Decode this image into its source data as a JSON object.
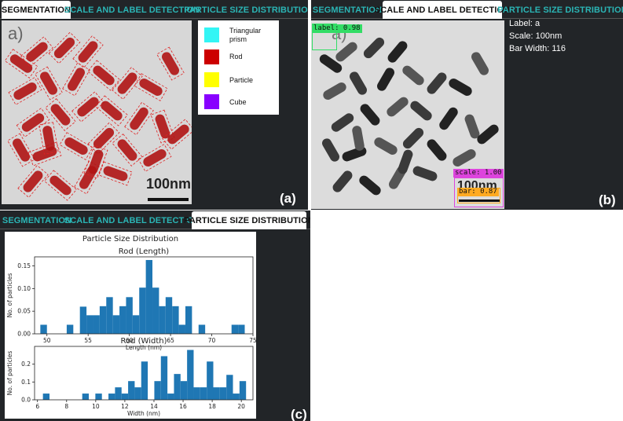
{
  "panel_a": {
    "tabs": [
      {
        "label": "SEGMENTATION",
        "active": true
      },
      {
        "label": "SCALE AND LABEL DETECTION",
        "active": false
      },
      {
        "label": "PARTICLE SIZE DISTRIBUTION",
        "active": false
      }
    ],
    "image_label": "a)",
    "scale_text": "100nm",
    "legend": [
      {
        "name": "Triangular prism",
        "color": "#33f5f5",
        "icon": "cyan-swatch"
      },
      {
        "name": "Rod",
        "color": "#cc0000",
        "icon": "red-swatch"
      },
      {
        "name": "Particle",
        "color": "#ffff00",
        "icon": "yellow-swatch"
      },
      {
        "name": "Cube",
        "color": "#8800ff",
        "icon": "violet-swatch"
      }
    ],
    "panel_label": "(a)"
  },
  "panel_b": {
    "tabs": [
      {
        "label": "SEGMENTATION",
        "active": false
      },
      {
        "label": "SCALE AND LABEL DETECTION",
        "active": true
      },
      {
        "label": "PARTICLE SIZE DISTRIBUTION",
        "active": false
      }
    ],
    "image_label": "a)",
    "scale_text": "100nm",
    "detections": {
      "label": "label: 0.98",
      "scale": "scale: 1.00",
      "bar": "bar: 0.87"
    },
    "info": {
      "label": "Label: a",
      "scale": "Scale: 100nm",
      "bar_width": "Bar Width: 116"
    },
    "colors": {
      "label_box": "#33dd66",
      "scale_box": "#dd44dd",
      "bar_box": "#ffaa22"
    },
    "panel_label": "(b)"
  },
  "panel_c": {
    "tabs": [
      {
        "label": "SEGMENTATION",
        "active": false
      },
      {
        "label": "SCALE AND LABEL DETECTION",
        "active": false
      },
      {
        "label": "PARTICLE SIZE DISTRIBUTION",
        "active": true
      }
    ],
    "panel_label": "(c)"
  },
  "chart_data": [
    {
      "type": "bar",
      "suptitle": "Particle Size Distribution",
      "title": "Rod (Length)",
      "xlabel": "Length (nm)",
      "ylabel": "No. of particles",
      "xlim": [
        48.5,
        75
      ],
      "ylim": [
        0,
        0.17
      ],
      "xticks": [
        50,
        55,
        60,
        65,
        70,
        75
      ],
      "yticks": [
        0,
        0.05,
        0.1,
        0.15
      ],
      "ytick_labels": [
        "0.00",
        "0.05",
        "0.10",
        "0.15"
      ],
      "bin_width": 0.8,
      "bins": [
        {
          "x": 49.6,
          "y": 0.02
        },
        {
          "x": 52.8,
          "y": 0.02
        },
        {
          "x": 54.4,
          "y": 0.06
        },
        {
          "x": 55.2,
          "y": 0.041
        },
        {
          "x": 56.0,
          "y": 0.041
        },
        {
          "x": 56.8,
          "y": 0.061
        },
        {
          "x": 57.6,
          "y": 0.081
        },
        {
          "x": 58.4,
          "y": 0.041
        },
        {
          "x": 59.2,
          "y": 0.061
        },
        {
          "x": 60.0,
          "y": 0.081
        },
        {
          "x": 60.8,
          "y": 0.041
        },
        {
          "x": 61.6,
          "y": 0.102
        },
        {
          "x": 62.4,
          "y": 0.163
        },
        {
          "x": 63.2,
          "y": 0.102
        },
        {
          "x": 64.0,
          "y": 0.061
        },
        {
          "x": 64.8,
          "y": 0.081
        },
        {
          "x": 65.6,
          "y": 0.061
        },
        {
          "x": 66.4,
          "y": 0.02
        },
        {
          "x": 67.2,
          "y": 0.061
        },
        {
          "x": 68.8,
          "y": 0.02
        },
        {
          "x": 72.8,
          "y": 0.02
        },
        {
          "x": 73.6,
          "y": 0.02
        }
      ]
    },
    {
      "type": "bar",
      "title": "Rod (Width)",
      "xlabel": "Width (nm)",
      "ylabel": "No. of particles",
      "xlim": [
        5.8,
        20.8
      ],
      "ylim": [
        0,
        0.3
      ],
      "xticks": [
        6,
        8,
        10,
        12,
        14,
        16,
        18,
        20
      ],
      "yticks": [
        0,
        0.1,
        0.2
      ],
      "ytick_labels": [
        "0.0",
        "0.1",
        "0.2"
      ],
      "bin_width": 0.45,
      "bins": [
        {
          "x": 6.6,
          "y": 0.035
        },
        {
          "x": 9.3,
          "y": 0.035
        },
        {
          "x": 10.2,
          "y": 0.035
        },
        {
          "x": 11.1,
          "y": 0.035
        },
        {
          "x": 11.55,
          "y": 0.07
        },
        {
          "x": 12.0,
          "y": 0.035
        },
        {
          "x": 12.45,
          "y": 0.105
        },
        {
          "x": 12.9,
          "y": 0.07
        },
        {
          "x": 13.35,
          "y": 0.215
        },
        {
          "x": 14.25,
          "y": 0.105
        },
        {
          "x": 14.7,
          "y": 0.245
        },
        {
          "x": 15.15,
          "y": 0.035
        },
        {
          "x": 15.6,
          "y": 0.145
        },
        {
          "x": 16.05,
          "y": 0.105
        },
        {
          "x": 16.5,
          "y": 0.28
        },
        {
          "x": 16.95,
          "y": 0.07
        },
        {
          "x": 17.4,
          "y": 0.07
        },
        {
          "x": 17.85,
          "y": 0.215
        },
        {
          "x": 18.3,
          "y": 0.07
        },
        {
          "x": 18.75,
          "y": 0.07
        },
        {
          "x": 19.2,
          "y": 0.14
        },
        {
          "x": 19.65,
          "y": 0.035
        },
        {
          "x": 20.1,
          "y": 0.105
        }
      ]
    }
  ]
}
